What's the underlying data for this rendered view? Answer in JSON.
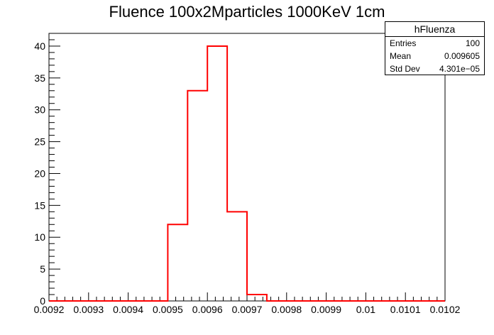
{
  "chart_data": {
    "type": "bar",
    "title": "Fluence 100x2Mparticles 1000KeV 1cm",
    "xlabel": "",
    "ylabel": "",
    "xlim": [
      0.0092,
      0.0102
    ],
    "ylim": [
      0,
      42
    ],
    "bin_width": 5e-05,
    "bins": [
      {
        "x0": 0.0095,
        "x1": 0.00955,
        "value": 12
      },
      {
        "x0": 0.00955,
        "x1": 0.0096,
        "value": 33
      },
      {
        "x0": 0.0096,
        "x1": 0.00965,
        "value": 40
      },
      {
        "x0": 0.00965,
        "x1": 0.0097,
        "value": 14
      },
      {
        "x0": 0.0097,
        "x1": 0.00975,
        "value": 1
      }
    ],
    "x_ticks": [
      "0.0092",
      "0.0093",
      "0.0094",
      "0.0095",
      "0.0096",
      "0.0097",
      "0.0098",
      "0.0099",
      "0.01",
      "0.0101",
      "0.0102"
    ],
    "y_ticks": [
      "0",
      "5",
      "10",
      "15",
      "20",
      "25",
      "30",
      "35",
      "40"
    ],
    "line_color": "#ff0000",
    "grid": false,
    "stats_box": {
      "name": "hFluenza",
      "rows": [
        {
          "label": "Entries",
          "value": "100"
        },
        {
          "label": "Mean",
          "value": "0.009605"
        },
        {
          "label": "Std Dev",
          "value": "4.301e−05"
        }
      ]
    },
    "legend_placement": "top-right"
  }
}
